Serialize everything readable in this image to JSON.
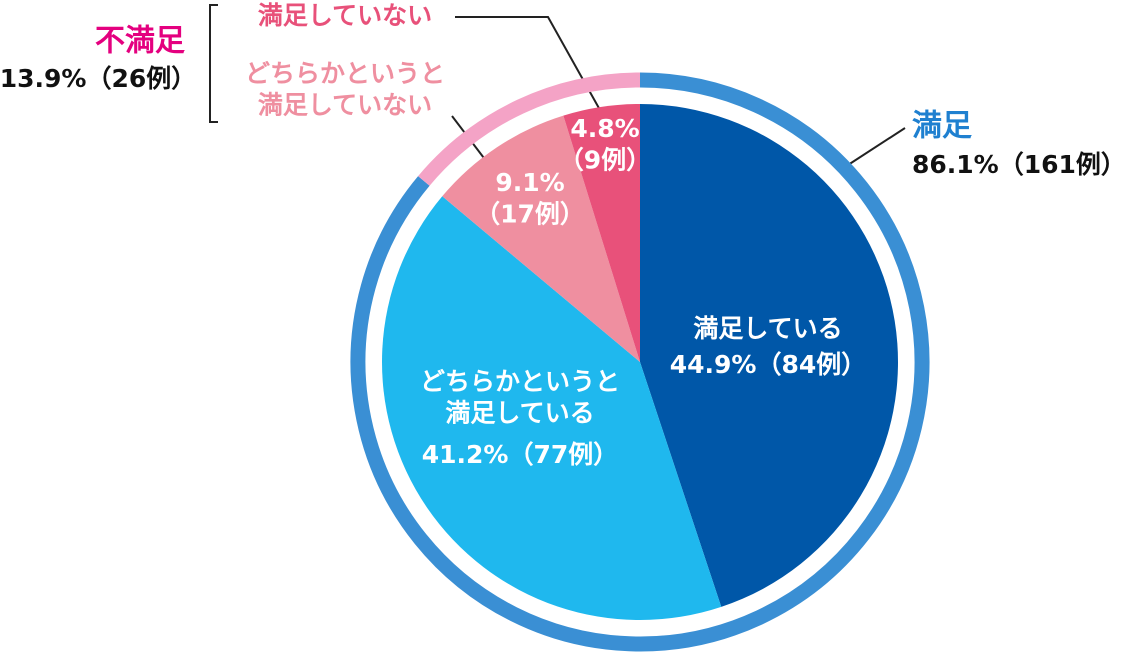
{
  "chart_data": {
    "type": "pie",
    "categories": [
      "満足している",
      "どちらかというと\n満足している",
      "どちらかというと\n満足していない",
      "満足していない"
    ],
    "values": [
      44.9,
      41.2,
      9.1,
      4.8
    ],
    "value_labels": [
      "44.9%",
      "41.2%",
      "9.1%",
      "4.8%"
    ],
    "counts": [
      84,
      77,
      17,
      9
    ],
    "count_labels": [
      "（84例）",
      "（77例）",
      "（17例）",
      "（9例）"
    ],
    "colors": [
      "#0057a8",
      "#1fb8ee",
      "#ef8fa0",
      "#e8517a"
    ],
    "groups": [
      {
        "name": "満足",
        "value": 86.1,
        "value_label": "86.1%",
        "count": 161,
        "count_label": "（161例）",
        "color": "#3a8fd4",
        "label_color": "#1f80d0"
      },
      {
        "name": "不満足",
        "value": 13.9,
        "value_label": "13.9%",
        "count": 26,
        "count_label": "（26例）",
        "color": "#f4a3c6",
        "label_color": "#e4007f"
      }
    ]
  }
}
